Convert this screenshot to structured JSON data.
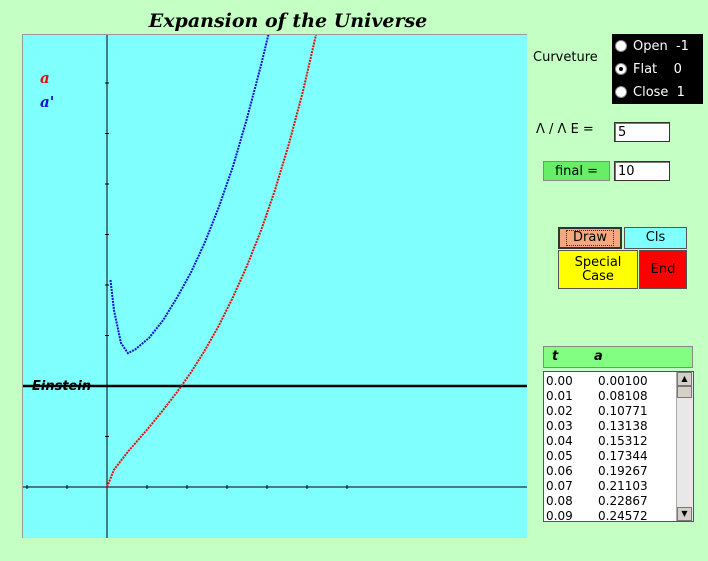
{
  "title": "Expansion of the Universe",
  "plot": {
    "legend_a": "a",
    "legend_a_prime": "a'",
    "einstein_label": "Einstein",
    "colors": {
      "background": "#80ffff",
      "a": "#e01010",
      "a_prime": "#1010d0"
    }
  },
  "chart_data": {
    "type": "line",
    "series": [
      {
        "name": "a",
        "color": "#e01010",
        "x": [
          0,
          0.1,
          0.2,
          0.3,
          0.4,
          0.5,
          0.6,
          0.8,
          1.0,
          1.2,
          1.4,
          1.6,
          1.8,
          2.0,
          2.2,
          2.4,
          2.6,
          2.8,
          3.0,
          3.2
        ],
        "y": [
          0,
          0.34,
          0.52,
          0.7,
          0.86,
          1.02,
          1.18,
          1.52,
          1.88,
          2.27,
          2.71,
          3.2,
          3.76,
          4.38,
          5.08,
          5.88,
          6.8,
          7.84,
          9.04,
          10.4
        ]
      },
      {
        "name": "a'",
        "color": "#1010d0",
        "x": [
          0.05,
          0.1,
          0.2,
          0.3,
          0.4,
          0.6,
          0.8,
          1.0,
          1.2,
          1.4,
          1.6,
          1.8,
          2.0,
          2.2,
          2.4,
          2.6,
          2.8
        ],
        "y": [
          4.1,
          3.5,
          2.85,
          2.65,
          2.72,
          2.95,
          3.3,
          3.75,
          4.25,
          4.85,
          5.55,
          6.35,
          7.3,
          8.35,
          9.5,
          10.5,
          11.5
        ]
      }
    ],
    "einstein_level": 2.0
  },
  "curvature": {
    "label": "Curveture",
    "options": [
      {
        "label": "Open  -1",
        "selected": false
      },
      {
        "label": "Flat    0",
        "selected": true
      },
      {
        "label": "Close  1",
        "selected": false
      }
    ]
  },
  "lambda_ratio": {
    "label": "Λ / Λ E =",
    "value": "5"
  },
  "final": {
    "label": "final =",
    "value": "10"
  },
  "buttons": {
    "draw": "Draw",
    "cls": "Cls",
    "special_line1": "Special",
    "special_line2": "Case",
    "end": "End"
  },
  "table": {
    "header_t": "t",
    "header_a": "a",
    "rows": [
      {
        "t": "0.00",
        "a": "0.00100"
      },
      {
        "t": "0.01",
        "a": "0.08108"
      },
      {
        "t": "0.02",
        "a": "0.10771"
      },
      {
        "t": "0.03",
        "a": "0.13138"
      },
      {
        "t": "0.04",
        "a": "0.15312"
      },
      {
        "t": "0.05",
        "a": "0.17344"
      },
      {
        "t": "0.06",
        "a": "0.19267"
      },
      {
        "t": "0.07",
        "a": "0.21103"
      },
      {
        "t": "0.08",
        "a": "0.22867"
      },
      {
        "t": "0.09",
        "a": "0.24572"
      }
    ]
  }
}
